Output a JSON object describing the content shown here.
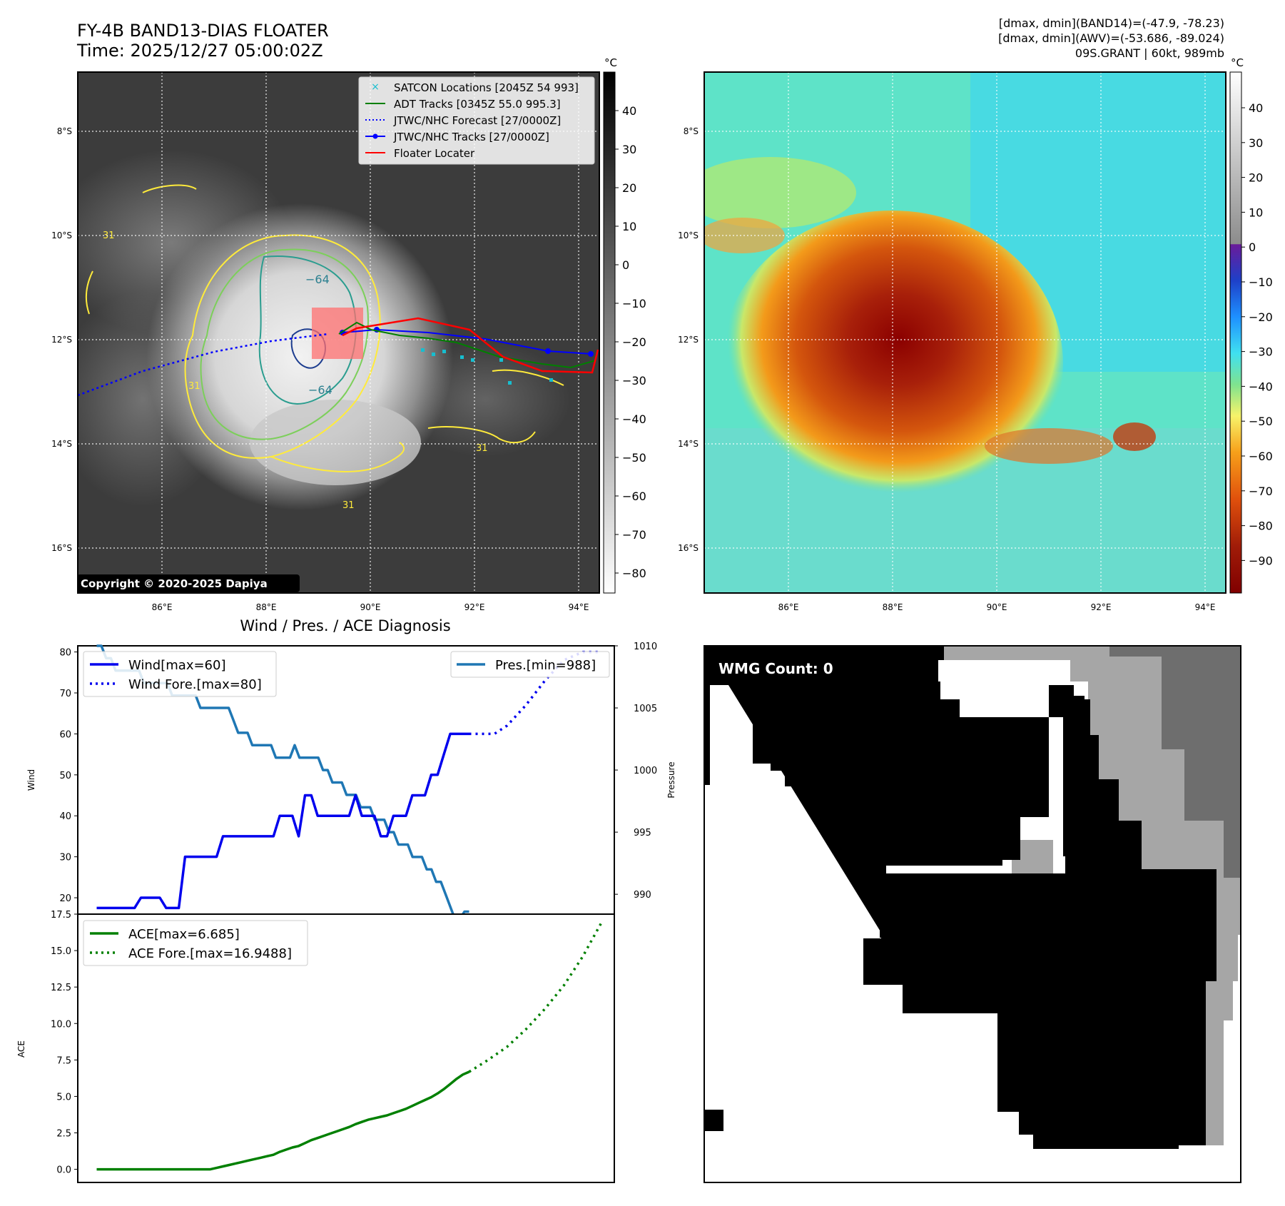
{
  "header": {
    "title_line1": "FY-4B BAND13-DIAS FLOATER",
    "title_line2": "Time: 2025/12/27 05:00:02Z",
    "info_line1": "[dmax, dmin](BAND14)=(-47.9, -78.23)",
    "info_line2": "[dmax, dmin](AWV)=(-53.686, -89.024)",
    "info_line3": "09S.GRANT | 60kt, 989mb"
  },
  "map": {
    "lat_labels": [
      "8°S",
      "10°S",
      "12°S",
      "14°S",
      "16°S"
    ],
    "lon_labels": [
      "86°E",
      "88°E",
      "90°E",
      "92°E",
      "94°E"
    ],
    "copyright": "Copyright © 2020-2025 Dapiya",
    "contour_labels": [
      "−64",
      "−64",
      "31",
      "31",
      "31",
      "31"
    ],
    "legend": [
      {
        "label": "SATCON Locations [2045Z 54 993]",
        "color": "#17becf"
      },
      {
        "label": "ADT Tracks [0345Z 55.0 995.3]",
        "color": "#008000"
      },
      {
        "label": "JTWC/NHC Forecast [27/0000Z]",
        "color": "#0000ff"
      },
      {
        "label": "JTWC/NHC Tracks [27/0000Z]",
        "color": "#0000ff"
      },
      {
        "label": "Floater Locater",
        "color": "#ff0000"
      }
    ]
  },
  "colorbar_gray": {
    "unit": "°C",
    "ticks": [
      "40",
      "30",
      "20",
      "10",
      "0",
      "−10",
      "−20",
      "−30",
      "−40",
      "−50",
      "−60",
      "−70",
      "−80"
    ]
  },
  "colorbar_color": {
    "unit": "°C",
    "ticks": [
      "40",
      "30",
      "20",
      "10",
      "0",
      "−10",
      "−20",
      "−30",
      "−40",
      "−50",
      "−60",
      "−70",
      "−80",
      "−90"
    ]
  },
  "wmg": {
    "label": "WMG Count: 0"
  },
  "chart_data": [
    {
      "type": "line",
      "title": "Wind / Pres. / ACE Diagnosis",
      "ylabel": "Wind",
      "y2label": "Pressure",
      "ylim": [
        16,
        81.5
      ],
      "y2lim": [
        988.4,
        1010
      ],
      "yticks": [
        "80",
        "70",
        "60",
        "50",
        "40",
        "30",
        "20"
      ],
      "y2ticks": [
        "1010",
        "1005",
        "1000",
        "995",
        "990"
      ],
      "legend_left": [
        "Wind[max=60]",
        "Wind Fore.[max=80]"
      ],
      "legend_right": [
        "Pres.[min=988]"
      ],
      "series": [
        {
          "name": "Wind[max=60]",
          "color": "#0000ee",
          "style": "solid",
          "values": [
            17.5,
            17.5,
            17.5,
            17.5,
            17.5,
            17.5,
            17.5,
            20,
            20,
            20,
            20,
            17.5,
            17.5,
            17.5,
            30,
            30,
            30,
            30,
            30,
            30,
            35,
            35,
            35,
            35,
            35,
            35,
            35,
            35,
            35,
            40,
            40,
            40,
            35,
            45,
            45,
            40,
            40,
            40,
            40,
            40,
            40,
            45,
            40,
            40,
            40,
            35,
            35,
            40,
            40,
            40,
            45,
            45,
            45,
            50,
            50,
            55,
            60,
            60,
            60,
            60
          ]
        },
        {
          "name": "Wind Fore.[max=80]",
          "color": "#0000ee",
          "style": "dotted",
          "x": [
            59,
            61,
            63,
            65,
            68,
            71,
            74,
            77,
            80
          ],
          "values": [
            60,
            60,
            60,
            62,
            67,
            73,
            78,
            80,
            80
          ]
        },
        {
          "name": "Pres.[min=988]",
          "color": "#1f77b4",
          "style": "solid",
          "values": [
            1010,
            1010,
            1009,
            1009,
            1008,
            1008,
            1008,
            1008,
            1008,
            1008,
            1007,
            1007,
            1007,
            1007,
            1007,
            1007,
            1006,
            1006,
            1006,
            1006,
            1006,
            1006,
            1005,
            1005,
            1005,
            1005,
            1005,
            1005,
            1005,
            1004,
            1003,
            1003,
            1003,
            1002,
            1002,
            1002,
            1002,
            1002,
            1001,
            1001,
            1001,
            1001,
            1002,
            1001,
            1001,
            1001,
            1001,
            1001,
            1000,
            1000,
            999,
            999,
            999,
            998,
            998,
            998,
            997,
            997,
            997,
            996,
            996,
            996,
            995,
            995,
            994,
            994,
            994,
            993,
            993,
            993,
            992,
            992,
            991,
            991,
            990,
            989,
            988,
            988,
            988.6,
            988.6
          ]
        }
      ]
    },
    {
      "type": "line",
      "ylabel": "ACE",
      "ylim": [
        -0.9,
        17.5
      ],
      "yticks": [
        "17.5",
        "15.0",
        "12.5",
        "10.0",
        "7.5",
        "5.0",
        "2.5",
        "0.0"
      ],
      "legend": [
        "ACE[max=6.685]",
        "ACE Fore.[max=16.9488]"
      ],
      "series": [
        {
          "name": "ACE[max=6.685]",
          "color": "#008000",
          "style": "solid",
          "values": [
            0,
            0,
            0,
            0,
            0,
            0,
            0,
            0,
            0,
            0,
            0,
            0,
            0,
            0,
            0,
            0,
            0,
            0,
            0,
            0.1,
            0.2,
            0.3,
            0.4,
            0.5,
            0.6,
            0.7,
            0.8,
            0.9,
            1.0,
            1.2,
            1.35,
            1.5,
            1.6,
            1.8,
            2.0,
            2.15,
            2.3,
            2.45,
            2.6,
            2.75,
            2.9,
            3.1,
            3.25,
            3.4,
            3.5,
            3.6,
            3.7,
            3.85,
            4.0,
            4.15,
            4.35,
            4.55,
            4.75,
            4.95,
            5.2,
            5.5,
            5.85,
            6.2,
            6.5,
            6.685
          ]
        },
        {
          "name": "ACE Fore.[max=16.9488]",
          "color": "#008000",
          "style": "dotted",
          "x": [
            59,
            62,
            65,
            68,
            71,
            74,
            77,
            80
          ],
          "values": [
            6.685,
            7.5,
            8.4,
            9.6,
            11.0,
            12.6,
            14.6,
            16.9488
          ]
        }
      ]
    }
  ]
}
